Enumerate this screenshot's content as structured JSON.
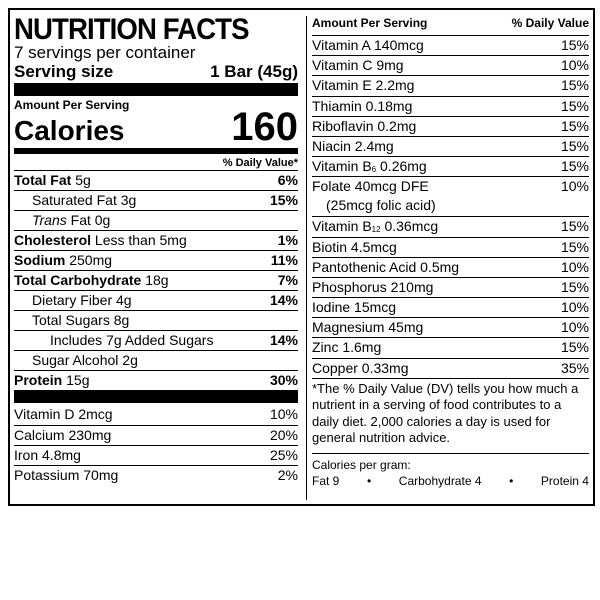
{
  "header": {
    "title": "NUTRITION FACTS",
    "servings": "7 servings per container",
    "serving_size_label": "Serving size",
    "serving_size_value": "1 Bar (45g)"
  },
  "calories": {
    "amount_label": "Amount Per Serving",
    "label": "Calories",
    "value": "160",
    "dv_header": "% Daily Value*"
  },
  "nutrients": {
    "total_fat": {
      "label": "Total Fat",
      "amount": "5g",
      "pct": "6%"
    },
    "saturated_fat": {
      "label": "Saturated Fat 3g",
      "pct": "15%"
    },
    "trans_fat": {
      "label_italic": "Trans",
      "label": "Fat 0g"
    },
    "cholesterol": {
      "label": "Cholesterol",
      "amount": "Less than 5mg",
      "pct": "1%"
    },
    "sodium": {
      "label": "Sodium",
      "amount": "250mg",
      "pct": "11%"
    },
    "total_carb": {
      "label": "Total Carbohydrate",
      "amount": "18g",
      "pct": "7%"
    },
    "dietary_fiber": {
      "label": "Dietary Fiber 4g",
      "pct": "14%"
    },
    "total_sugars": {
      "label": "Total Sugars 8g"
    },
    "added_sugars": {
      "label": "Includes 7g Added Sugars",
      "pct": "14%"
    },
    "sugar_alcohol": {
      "label": "Sugar Alcohol 2g"
    },
    "protein": {
      "label": "Protein",
      "amount": "15g",
      "pct": "30%"
    }
  },
  "vitamins_left": [
    {
      "label": "Vitamin D 2mcg",
      "pct": "10%"
    },
    {
      "label": "Calcium 230mg",
      "pct": "20%"
    },
    {
      "label": "Iron 4.8mg",
      "pct": "25%"
    },
    {
      "label": "Potassium 70mg",
      "pct": "2%"
    }
  ],
  "right": {
    "amount_header": "Amount Per Serving",
    "dv_header": "% Daily Value",
    "vitamin_a": {
      "label": "Vitamin A  140mcg",
      "pct": "15%"
    },
    "vitamin_c": {
      "label": "Vitamin C  9mg",
      "pct": "10%"
    },
    "vitamin_e": {
      "label": "Vitamin E  2.2mg",
      "pct": "15%"
    },
    "thiamin": {
      "label": "Thiamin  0.18mg",
      "pct": "15%"
    },
    "riboflavin": {
      "label": "Riboflavin  0.2mg",
      "pct": "15%"
    },
    "niacin": {
      "label": "Niacin  2.4mg",
      "pct": "15%"
    },
    "vitamin_b6": {
      "prefix": "Vitamin B",
      "sub": "6",
      "suffix": "  0.26mg",
      "pct": "15%"
    },
    "folate": {
      "line1": "Folate  40mcg DFE",
      "line2": "(25mcg folic acid)",
      "pct": "10%"
    },
    "vitamin_b12": {
      "prefix": "Vitamin B",
      "sub": "12",
      "suffix": "  0.36mcg",
      "pct": "15%"
    },
    "biotin": {
      "label": "Biotin  4.5mcg",
      "pct": "15%"
    },
    "pantothenic": {
      "label": "Pantothenic Acid  0.5mg",
      "pct": "10%"
    },
    "phosphorus": {
      "label": "Phosphorus  210mg",
      "pct": "15%"
    },
    "iodine": {
      "label": "Iodine  15mcg",
      "pct": "10%"
    },
    "magnesium": {
      "label": "Magnesium 45mg",
      "pct": "10%"
    },
    "zinc": {
      "label": "Zinc  1.6mg",
      "pct": "15%"
    },
    "copper": {
      "label": "Copper  0.33mg",
      "pct": "35%"
    },
    "footnote": "*The % Daily Value (DV) tells you how much a nutrient in a serving of food contributes to a daily diet. 2,000 calories a day is used for general nutrition advice.",
    "calories_per_gram_label": "Calories per gram:",
    "cpg_fat": "Fat 9",
    "cpg_carb": "Carbohydrate 4",
    "cpg_protein": "Protein 4",
    "bullet": "•"
  }
}
